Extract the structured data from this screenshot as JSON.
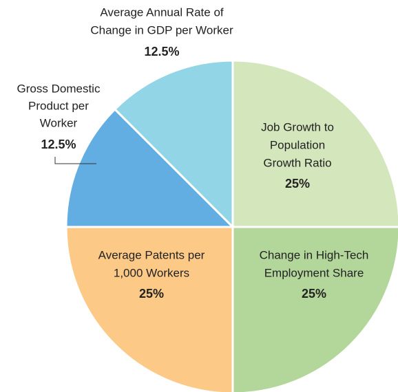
{
  "chart_data": {
    "type": "pie",
    "labels": [
      [
        "Job Growth to",
        "Population",
        "Growth Ratio"
      ],
      [
        "Change in High-Tech",
        "Employment Share"
      ],
      [
        "Average Patents per",
        "1,000 Workers"
      ],
      [
        "Gross Domestic",
        "Product per",
        "Worker"
      ],
      [
        "Average Annual Rate of",
        "Change in GDP per Worker"
      ]
    ],
    "values": [
      25,
      25,
      25,
      12.5,
      12.5
    ],
    "value_labels": [
      "25%",
      "25%",
      "25%",
      "12.5%",
      "12.5%"
    ],
    "colors": [
      "#d4e6bc",
      "#b3d69a",
      "#fcc987",
      "#62aee3",
      "#92d5e6"
    ]
  }
}
